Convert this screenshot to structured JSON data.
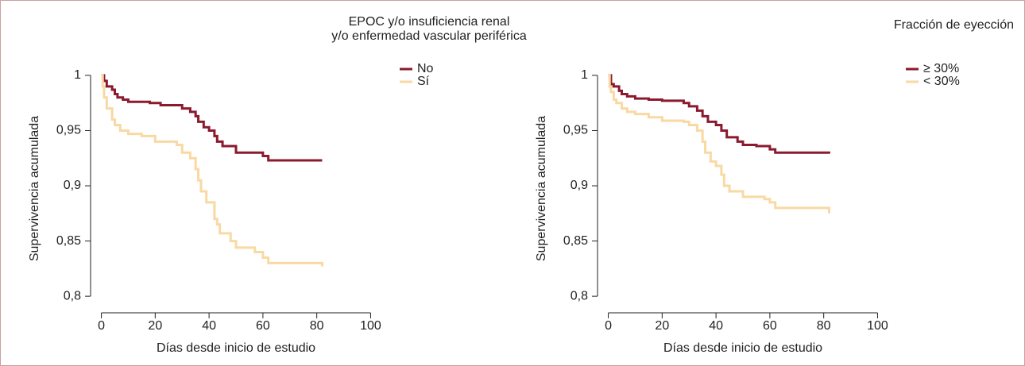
{
  "chart_data": [
    {
      "type": "line",
      "step": true,
      "title": "EPOC y/o insuficiencia renal\ny/o enfermedad vascular periférica",
      "xlabel": "Días desde inicio de estudio",
      "ylabel": "Supervivencia acumulada",
      "xlim": [
        -4,
        104
      ],
      "ylim": [
        0.785,
        1.01
      ],
      "xticks": [
        0,
        20,
        40,
        60,
        80,
        100
      ],
      "yticks": [
        {
          "value": 0.8,
          "label": "0,8"
        },
        {
          "value": 0.85,
          "label": "0,85"
        },
        {
          "value": 0.9,
          "label": "0,9"
        },
        {
          "value": 0.95,
          "label": "0,95"
        },
        1
      ],
      "legend": "top-right-outside",
      "series": [
        {
          "name": "No",
          "color": "#8b1a2e",
          "x": [
            0,
            1,
            2,
            4,
            5,
            6,
            8,
            10,
            18,
            22,
            30,
            33,
            35,
            36,
            38,
            40,
            42,
            43,
            45,
            50,
            60,
            62,
            82
          ],
          "values": [
            1,
            0.995,
            0.99,
            0.987,
            0.983,
            0.98,
            0.978,
            0.976,
            0.975,
            0.973,
            0.97,
            0.967,
            0.963,
            0.958,
            0.953,
            0.95,
            0.945,
            0.94,
            0.936,
            0.93,
            0.927,
            0.923,
            0.923
          ]
        },
        {
          "name": "Sí",
          "color": "#f9d9a3",
          "x": [
            0,
            0.5,
            1,
            2,
            4,
            5,
            7,
            10,
            15,
            20,
            28,
            30,
            33,
            35,
            36,
            37,
            39,
            42,
            43,
            44,
            48,
            50,
            57,
            60,
            62,
            82,
            82
          ],
          "values": [
            1,
            0.99,
            0.98,
            0.97,
            0.96,
            0.955,
            0.95,
            0.947,
            0.945,
            0.94,
            0.937,
            0.93,
            0.925,
            0.915,
            0.905,
            0.895,
            0.885,
            0.87,
            0.865,
            0.857,
            0.85,
            0.844,
            0.84,
            0.835,
            0.83,
            0.829,
            0.827
          ]
        }
      ]
    },
    {
      "type": "line",
      "step": true,
      "title": "Fracción de eyección",
      "xlabel": "Días desde inicio de estudio",
      "ylabel": "Supervivencia acumulada",
      "xlim": [
        -4,
        104
      ],
      "ylim": [
        0.785,
        1.01
      ],
      "xticks": [
        0,
        20,
        40,
        60,
        80,
        100
      ],
      "yticks": [
        {
          "value": 0.8,
          "label": "0,8"
        },
        {
          "value": 0.85,
          "label": "0,85"
        },
        {
          "value": 0.9,
          "label": "0,9"
        },
        {
          "value": 0.95,
          "label": "0,95"
        },
        1
      ],
      "legend": "top-right-outside",
      "series": [
        {
          "name": "≥ 30%",
          "color": "#8b1a2e",
          "x": [
            0,
            1,
            2,
            4,
            5,
            7,
            10,
            15,
            20,
            28,
            30,
            33,
            35,
            37,
            40,
            42,
            44,
            48,
            50,
            55,
            60,
            62,
            82,
            82
          ],
          "values": [
            1,
            0.992,
            0.99,
            0.986,
            0.983,
            0.981,
            0.979,
            0.978,
            0.977,
            0.975,
            0.972,
            0.968,
            0.963,
            0.958,
            0.955,
            0.95,
            0.944,
            0.94,
            0.937,
            0.936,
            0.933,
            0.93,
            0.93,
            0.929
          ]
        },
        {
          "name": "< 30%",
          "color": "#f9d9a3",
          "x": [
            0,
            0.5,
            1,
            2,
            3,
            5,
            7,
            10,
            15,
            20,
            28,
            30,
            33,
            35,
            36,
            38,
            40,
            42,
            43,
            45,
            50,
            58,
            60,
            62,
            82,
            82
          ],
          "values": [
            1,
            0.99,
            0.985,
            0.978,
            0.975,
            0.97,
            0.967,
            0.965,
            0.962,
            0.959,
            0.958,
            0.955,
            0.95,
            0.94,
            0.93,
            0.922,
            0.918,
            0.91,
            0.9,
            0.895,
            0.89,
            0.888,
            0.885,
            0.88,
            0.878,
            0.875
          ]
        }
      ]
    }
  ]
}
